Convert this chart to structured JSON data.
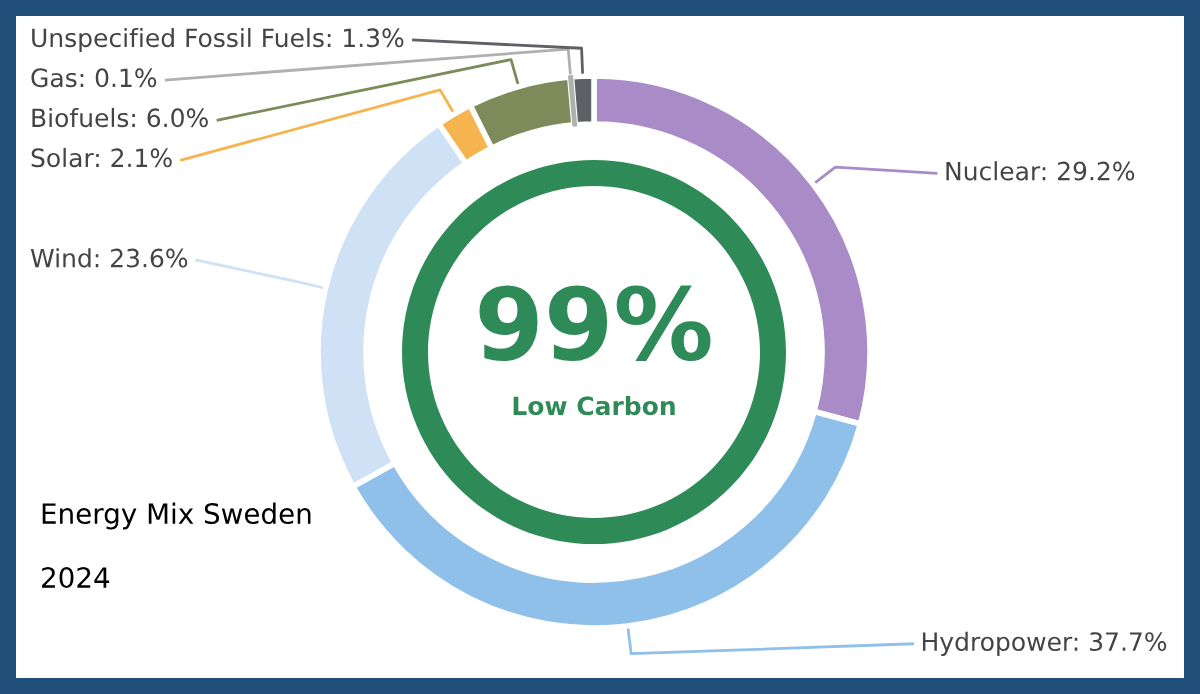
{
  "chart_data": {
    "type": "donut",
    "title": "Energy Mix Sweden",
    "subtitle": "2024",
    "categories": [
      "Nuclear",
      "Hydropower",
      "Wind",
      "Solar",
      "Biofuels",
      "Gas",
      "Unspecified Fossil Fuels"
    ],
    "values": [
      29.2,
      37.7,
      23.6,
      2.1,
      6.0,
      0.1,
      1.3
    ],
    "value_labels": [
      "29.2%",
      "37.7%",
      "23.6%",
      "2.1%",
      "6.0%",
      "0.1%",
      "1.3%"
    ],
    "colors": [
      "#a98bc8",
      "#8fc0ea",
      "#cfe2f5",
      "#f6b44f",
      "#7d8b5a",
      "#b0b0b0",
      "#5f5f66"
    ],
    "annotations": [
      "99%",
      "Low Carbon"
    ]
  }
}
